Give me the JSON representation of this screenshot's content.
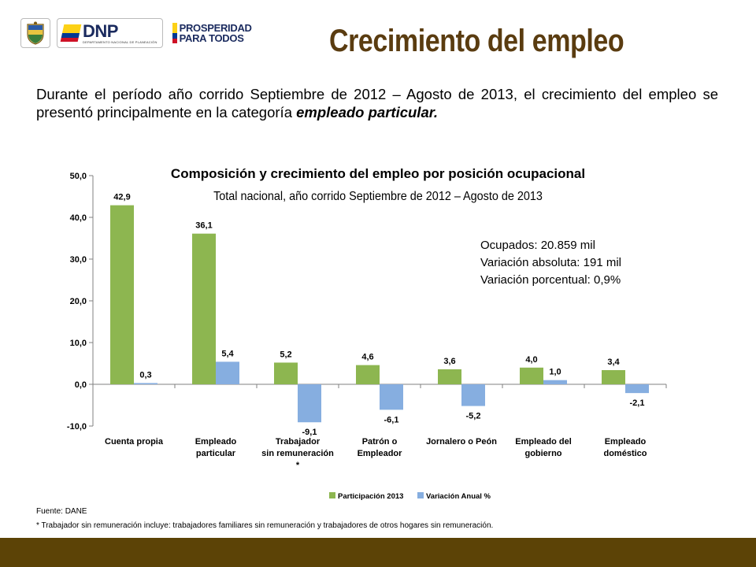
{
  "header": {
    "logos": {
      "shield_icon": "colombia-coat-of-arms-icon",
      "dnp_word": "DNP",
      "dnp_sub": "DEPARTAMENTO NACIONAL DE PLANEACIÓN",
      "prosperidad_line1": "PROSPERIDAD",
      "prosperidad_line2": "PARA TODOS",
      "flag_colors": [
        "#fcd116",
        "#003893",
        "#ce1126"
      ]
    },
    "title": "Crecimiento del empleo"
  },
  "intro": {
    "part1": "Durante el período año corrido  Septiembre de 2012 – Agosto  de 2013, el crecimiento del empleo se presentó principalmente en la categoría ",
    "emphasis": "empleado particular."
  },
  "chart_data": {
    "type": "bar",
    "title": "Composición y crecimiento del empleo por posición ocupacional",
    "subtitle": "Total nacional, año corrido  Septiembre de 2012 – Agosto  de 2013",
    "categories": [
      [
        "Cuenta propia"
      ],
      [
        "Empleado",
        "particular"
      ],
      [
        "Trabajador",
        "sin remuneración",
        "*"
      ],
      [
        "Patrón o",
        "Empleador"
      ],
      [
        "Jornalero o Peón"
      ],
      [
        "Empleado del",
        "gobierno"
      ],
      [
        "Empleado",
        "doméstico"
      ]
    ],
    "series": [
      {
        "name": "Participación 2013",
        "color": "#8db650",
        "values": [
          42.9,
          36.1,
          5.2,
          4.6,
          3.6,
          4.0,
          3.4
        ],
        "labels": [
          "42,9",
          "36,1",
          "5,2",
          "4,6",
          "3,6",
          "4,0",
          "3,4"
        ]
      },
      {
        "name": "Variación Anual %",
        "color": "#86aee0",
        "values": [
          0.3,
          5.4,
          -9.1,
          -6.1,
          -5.2,
          1.0,
          -2.1
        ],
        "labels": [
          "0,3",
          "5,4",
          "-9,1",
          "-6,1",
          "-5,2",
          "1,0",
          "-2,1"
        ]
      }
    ],
    "ylim": [
      -10,
      50
    ],
    "yticks": [
      -10,
      0,
      10,
      20,
      30,
      40,
      50
    ],
    "ytick_labels": [
      "-10,0",
      "0,0",
      "10,0",
      "20,0",
      "30,0",
      "40,0",
      "50,0"
    ],
    "legend_position": "bottom",
    "grid": false,
    "annotation": [
      "Ocupados: 20.859 mil",
      "Variación absoluta: 191 mil",
      "Variación porcentual:  0,9%"
    ]
  },
  "footer": {
    "source": "Fuente: DANE",
    "note": "* Trabajador sin remuneración incluye: trabajadores familiares sin remuneración y trabajadores de otros hogares sin remuneración."
  },
  "colors": {
    "title": "#5a3c10",
    "band": "#5c4306"
  }
}
